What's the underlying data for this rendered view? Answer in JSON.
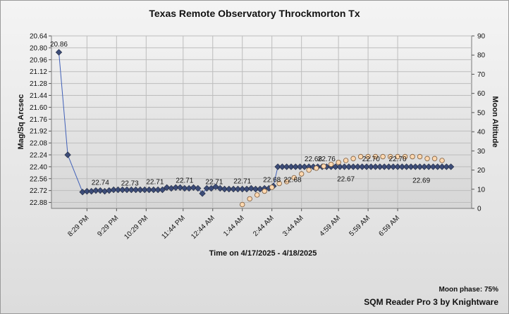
{
  "chart_data": {
    "type": "scatter",
    "title": "Texas Remote Observatory   Throckmorton Tx",
    "xlabel": "Time on 4/17/2025 - 4/18/2025",
    "ylabel_left": "Mag/Sq Arcsec",
    "ylabel_right": "Moon Altitude",
    "y_left_reversed": true,
    "y_left_ticks": [
      "20.64",
      "20.80",
      "20.96",
      "21.12",
      "21.28",
      "21.44",
      "21.60",
      "21.76",
      "21.92",
      "22.08",
      "22.24",
      "22.40",
      "22.56",
      "22.72",
      "22.88"
    ],
    "y_right_ticks": [
      "0",
      "10",
      "20",
      "30",
      "40",
      "50",
      "60",
      "70",
      "80",
      "90"
    ],
    "ylim_left": [
      20.64,
      22.96
    ],
    "ylim_right": [
      0,
      90
    ],
    "x_tick_labels": [
      "8:29 PM",
      "9:29 PM",
      "10:29 PM",
      "11:44 PM",
      "12:44 AM",
      "1:44 AM",
      "2:44 AM",
      "3:44 AM",
      "4:59 AM",
      "5:59 AM",
      "6:59 AM"
    ],
    "x_tick_hours": [
      0.0,
      1.0,
      2.0,
      3.25,
      4.25,
      5.25,
      6.25,
      7.25,
      8.5,
      9.5,
      10.5
    ],
    "x_range_hours": [
      -1.2,
      13.0
    ],
    "grid": true,
    "sqm_series": {
      "x": [
        -0.15,
        0.0,
        0.15,
        0.3,
        0.45,
        0.6,
        0.75,
        0.9,
        1.05,
        1.2,
        1.35,
        1.5,
        1.65,
        1.8,
        1.95,
        2.1,
        2.25,
        2.4,
        2.55,
        2.7,
        2.85,
        3.0,
        3.15,
        3.3,
        3.45,
        3.6,
        3.75,
        3.9,
        4.05,
        4.2,
        4.35,
        4.5,
        4.65,
        4.8,
        4.95,
        5.1,
        5.25,
        5.4,
        5.55,
        5.7,
        5.85,
        6.0,
        6.15,
        6.3,
        6.45,
        6.6,
        6.75,
        6.9,
        7.05,
        7.2,
        7.35,
        7.5,
        7.65,
        7.8,
        7.95,
        8.1,
        8.25,
        8.4,
        8.55,
        8.7,
        8.85,
        9.0,
        9.15,
        9.3,
        9.45,
        9.6,
        9.75,
        9.9,
        10.05,
        10.2,
        10.35,
        10.5,
        10.65,
        10.8,
        10.95,
        11.1,
        11.25,
        11.4,
        11.55,
        11.7,
        11.85,
        12.0,
        12.15,
        12.3
      ],
      "values": [
        22.74,
        22.73,
        22.73,
        22.72,
        22.72,
        22.73,
        22.72,
        22.71,
        22.71,
        22.71,
        22.71,
        22.71,
        22.71,
        22.71,
        22.71,
        22.71,
        22.71,
        22.71,
        22.71,
        22.68,
        22.69,
        22.68,
        22.68,
        22.69,
        22.69,
        22.68,
        22.69,
        22.76,
        22.69,
        22.69,
        22.67,
        22.69,
        22.7,
        22.7,
        22.7,
        22.7,
        22.7,
        22.7,
        22.69,
        22.7,
        22.7,
        22.69,
        22.69,
        22.66,
        22.4,
        22.4,
        22.4,
        22.4,
        22.4,
        22.4,
        22.4,
        22.4,
        22.4,
        22.4,
        22.4,
        22.4,
        22.4,
        22.4,
        22.4,
        22.4,
        22.4,
        22.4,
        22.4,
        22.4,
        22.4,
        22.4,
        22.4,
        22.4,
        22.4,
        22.4,
        22.4,
        22.4,
        22.4,
        22.4,
        22.4,
        22.4,
        22.4,
        22.4,
        22.4,
        22.4,
        22.4,
        22.4,
        22.4,
        22.4
      ],
      "lead_in_x": [
        -0.95,
        -0.65
      ],
      "lead_in_values": [
        20.86,
        22.24
      ],
      "labels": [
        {
          "x": -0.95,
          "text": "20.86"
        },
        {
          "x": 0.45,
          "text": "22.74"
        },
        {
          "x": 1.45,
          "text": "22.73"
        },
        {
          "x": 2.3,
          "text": "22.71"
        },
        {
          "x": 3.3,
          "text": "22.71"
        },
        {
          "x": 4.3,
          "text": "22.71"
        },
        {
          "x": 5.25,
          "text": "22.71"
        },
        {
          "x": 6.25,
          "text": "22.68"
        },
        {
          "x": 6.95,
          "text": "22.68"
        },
        {
          "x": 7.65,
          "text": "22.68"
        },
        {
          "x": 8.1,
          "text": "22.76"
        },
        {
          "x": 8.75,
          "text": "22.67"
        },
        {
          "x": 9.6,
          "text": "22.70"
        },
        {
          "x": 10.5,
          "text": "22.70"
        },
        {
          "x": 11.3,
          "text": "22.69"
        }
      ]
    },
    "moon_series": {
      "x": [
        5.25,
        5.5,
        5.75,
        6.0,
        6.25,
        6.5,
        6.75,
        7.0,
        7.25,
        7.5,
        7.75,
        8.0,
        8.25,
        8.5,
        8.75,
        9.0,
        9.25,
        9.5,
        9.75,
        10.0,
        10.25,
        10.5,
        10.75,
        11.0,
        11.25,
        11.5,
        11.75,
        12.0
      ],
      "values": [
        2,
        5,
        7,
        9,
        11,
        13,
        14,
        16,
        18,
        20,
        21,
        22,
        23,
        24,
        25,
        26,
        27,
        27,
        27,
        27,
        27,
        27,
        27,
        27,
        27,
        26,
        26,
        25
      ]
    }
  },
  "moon_phase": "Moon phase: 75%",
  "credit": "SQM Reader Pro 3 by Knightware",
  "colors": {
    "sqm_line": "#4060b8",
    "sqm_marker": "#3c4c78",
    "moon_fill": "#ffd8b0",
    "moon_stroke": "#7a5a3a",
    "grid": "#bdbdbd"
  }
}
